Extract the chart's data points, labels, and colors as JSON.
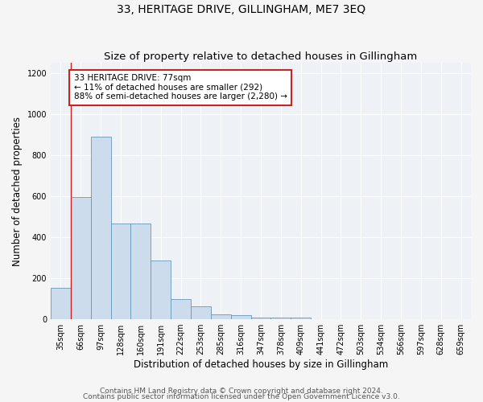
{
  "title": "33, HERITAGE DRIVE, GILLINGHAM, ME7 3EQ",
  "subtitle": "Size of property relative to detached houses in Gillingham",
  "xlabel": "Distribution of detached houses by size in Gillingham",
  "ylabel": "Number of detached properties",
  "bar_labels": [
    "35sqm",
    "66sqm",
    "97sqm",
    "128sqm",
    "160sqm",
    "191sqm",
    "222sqm",
    "253sqm",
    "285sqm",
    "316sqm",
    "347sqm",
    "378sqm",
    "409sqm",
    "441sqm",
    "472sqm",
    "503sqm",
    "534sqm",
    "566sqm",
    "597sqm",
    "628sqm",
    "659sqm"
  ],
  "bar_values": [
    155,
    595,
    890,
    465,
    465,
    285,
    100,
    62,
    25,
    18,
    10,
    10,
    10,
    0,
    0,
    0,
    0,
    0,
    0,
    0,
    0
  ],
  "bar_color": "#ccdcec",
  "bar_edge_color": "#6699bb",
  "property_line_x": 1.0,
  "annotation_text": "33 HERITAGE DRIVE: 77sqm\n← 11% of detached houses are smaller (292)\n88% of semi-detached houses are larger (2,280) →",
  "annotation_box_color": "#ffffff",
  "annotation_box_edge": "#cc2222",
  "vline_color": "#cc2222",
  "footer1": "Contains HM Land Registry data © Crown copyright and database right 2024.",
  "footer2": "Contains public sector information licensed under the Open Government Licence v3.0.",
  "ylim": [
    0,
    1250
  ],
  "yticks": [
    0,
    200,
    400,
    600,
    800,
    1000,
    1200
  ],
  "bg_color": "#eef2f6",
  "grid_color": "#ffffff",
  "title_fontsize": 10,
  "subtitle_fontsize": 9.5,
  "axis_label_fontsize": 8.5,
  "tick_fontsize": 7,
  "annotation_fontsize": 7.5,
  "footer_fontsize": 6.5
}
